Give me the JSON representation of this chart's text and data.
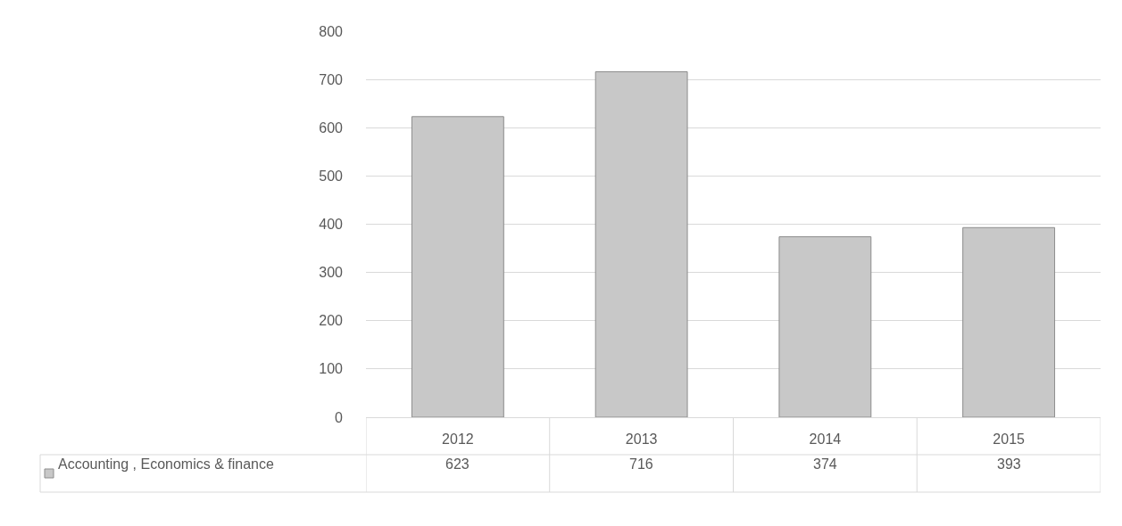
{
  "chart_data": {
    "type": "bar",
    "categories": [
      "2012",
      "2013",
      "2014",
      "2015"
    ],
    "series": [
      {
        "name": "Accounting , Economics & finance",
        "color": "#c8c8c8",
        "values": [
          623,
          716,
          374,
          393
        ]
      }
    ],
    "ylim": [
      0,
      800
    ],
    "yticks": [
      0,
      100,
      200,
      300,
      400,
      500,
      600,
      700,
      800
    ],
    "grid": "y",
    "data_labels": true,
    "legend": "bottom"
  }
}
